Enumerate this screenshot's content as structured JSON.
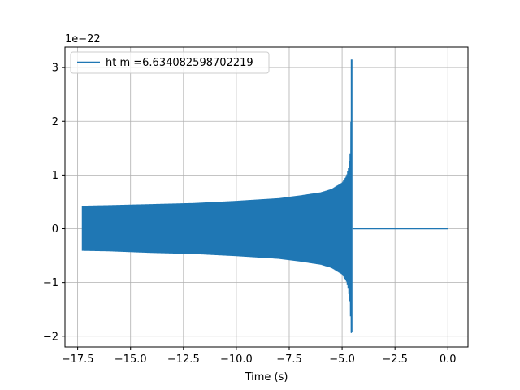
{
  "chart_data": {
    "type": "line",
    "title": "",
    "xlabel": "Time (s)",
    "ylabel": "",
    "y_scale_label": "1e−22",
    "xlim": [
      -18.1,
      0.95
    ],
    "ylim": [
      -2.2,
      3.38
    ],
    "x_ticks": [
      -17.5,
      -15.0,
      -12.5,
      -10.0,
      -7.5,
      -5.0,
      -2.5,
      0.0
    ],
    "x_tick_labels": [
      "−17.5",
      "−15.0",
      "−12.5",
      "−10.0",
      "−7.5",
      "−5.0",
      "−2.5",
      "0.0"
    ],
    "y_ticks": [
      -2,
      -1,
      0,
      1,
      2,
      3
    ],
    "y_tick_labels": [
      "−2",
      "−1",
      "0",
      "1",
      "2",
      "3"
    ],
    "grid": true,
    "legend_position": "top-left",
    "series": [
      {
        "name": "ht m =6.634082598702219",
        "color": "#1f77b4",
        "style": "chirp-oscillation",
        "envelope": {
          "t": [
            -17.28,
            -16.0,
            -14.0,
            -12.0,
            -10.0,
            -8.0,
            -7.0,
            -6.0,
            -5.5,
            -5.0,
            -4.8,
            -4.7,
            -4.62,
            -4.58,
            -4.55
          ],
          "upper": [
            0.43,
            0.44,
            0.46,
            0.48,
            0.52,
            0.57,
            0.62,
            0.68,
            0.74,
            0.86,
            0.98,
            1.13,
            1.42,
            2.1,
            3.15
          ],
          "lower": [
            -0.41,
            -0.42,
            -0.45,
            -0.47,
            -0.51,
            -0.56,
            -0.61,
            -0.67,
            -0.73,
            -0.85,
            -0.98,
            -1.15,
            -1.45,
            -1.95,
            -1.93
          ]
        },
        "flat_segment": {
          "x_start": -4.5,
          "x_end": 0.0,
          "value": 0.0
        }
      }
    ]
  }
}
